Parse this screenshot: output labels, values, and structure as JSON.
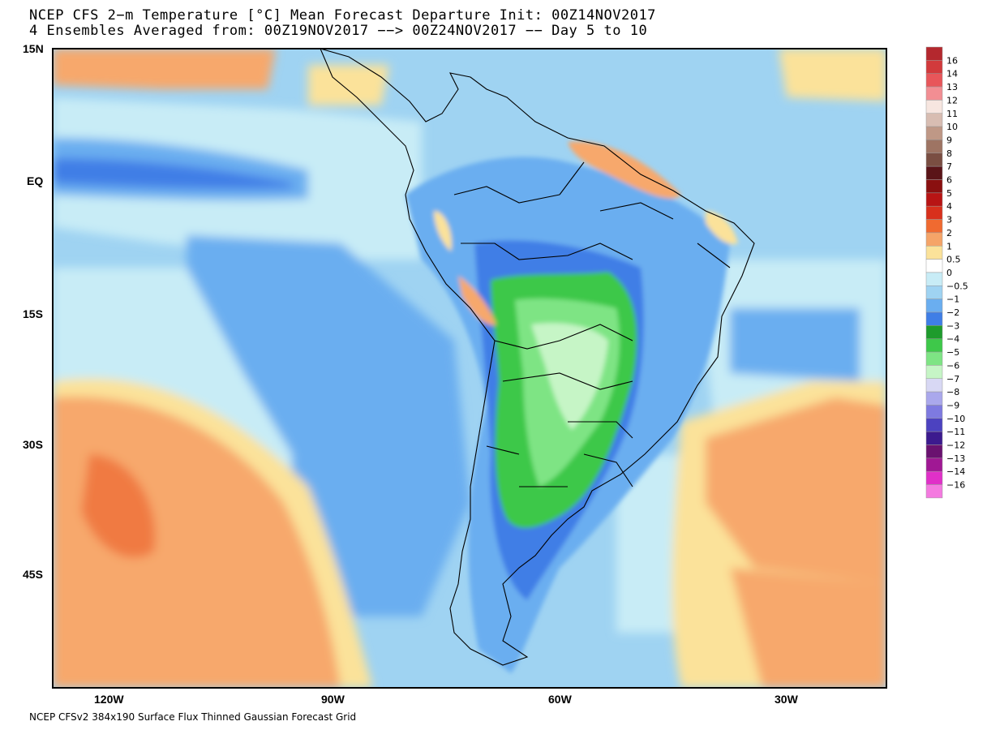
{
  "title": {
    "line1": "NCEP CFS 2−m Temperature [°C] Mean Forecast Departure Init: 00Z14NOV2017",
    "line2": "4 Ensembles Averaged from: 00Z19NOV2017 −−> 00Z24NOV2017 −− Day 5 to 10"
  },
  "footer": "NCEP CFSv2 384x190 Surface Flux Thinned Gaussian Forecast Grid",
  "axes": {
    "lat_labels": [
      "15N",
      "EQ",
      "15S",
      "30S",
      "45S"
    ],
    "lon_labels": [
      "120W",
      "90W",
      "60W",
      "30W"
    ]
  },
  "colorbar": {
    "levels": [
      {
        "label": "16",
        "color": "#b4282e"
      },
      {
        "label": "14",
        "color": "#d23a3c"
      },
      {
        "label": "13",
        "color": "#e8565a"
      },
      {
        "label": "12",
        "color": "#f28e93"
      },
      {
        "label": "11",
        "color": "#f7e6e0"
      },
      {
        "label": "10",
        "color": "#d8bdb2"
      },
      {
        "label": "9",
        "color": "#bf9886"
      },
      {
        "label": "8",
        "color": "#9e7463"
      },
      {
        "label": "7",
        "color": "#7a4e42"
      },
      {
        "label": "6",
        "color": "#5a1418"
      },
      {
        "label": "5",
        "color": "#8a1010"
      },
      {
        "label": "4",
        "color": "#b81414"
      },
      {
        "label": "3",
        "color": "#d8301c"
      },
      {
        "label": "2",
        "color": "#f06a30"
      },
      {
        "label": "1",
        "color": "#f5a468"
      },
      {
        "label": "0.5",
        "color": "#fbe29a"
      },
      {
        "label": "0",
        "color": "#ffffff"
      },
      {
        "label": "−0.5",
        "color": "#c8ecf6"
      },
      {
        "label": "−1",
        "color": "#9fd3f2"
      },
      {
        "label": "−2",
        "color": "#6aaef0"
      },
      {
        "label": "−3",
        "color": "#3f7ee6"
      },
      {
        "label": "−4",
        "color": "#1e9b2c"
      },
      {
        "label": "−5",
        "color": "#3ec84a"
      },
      {
        "label": "−6",
        "color": "#7ee484"
      },
      {
        "label": "−7",
        "color": "#c6f5c6"
      },
      {
        "label": "−8",
        "color": "#d8d8f4"
      },
      {
        "label": "−9",
        "color": "#aaa8ec"
      },
      {
        "label": "−10",
        "color": "#7e7ae0"
      },
      {
        "label": "−11",
        "color": "#4c42c0"
      },
      {
        "label": "−12",
        "color": "#3c1a8e"
      },
      {
        "label": "−13",
        "color": "#6a1270"
      },
      {
        "label": "−14",
        "color": "#a01894"
      },
      {
        "label": "−16",
        "color": "#e030c8"
      },
      {
        "label": "",
        "color": "#f47ae0"
      }
    ]
  },
  "colors": {
    "ocean_warm": "#f7a86c",
    "ocean_warm_strong": "#f07a42",
    "ocean_cold": "#9fd3f2",
    "ocean_cold_mid": "#6aaef0",
    "ocean_cold_strong": "#3f7ee6",
    "land_green": "#3ec84a",
    "land_green_light": "#7ee484",
    "land_green_pale": "#c6f5c6",
    "cold_light": "#c8ecf6",
    "warm_light": "#fbe29a"
  }
}
